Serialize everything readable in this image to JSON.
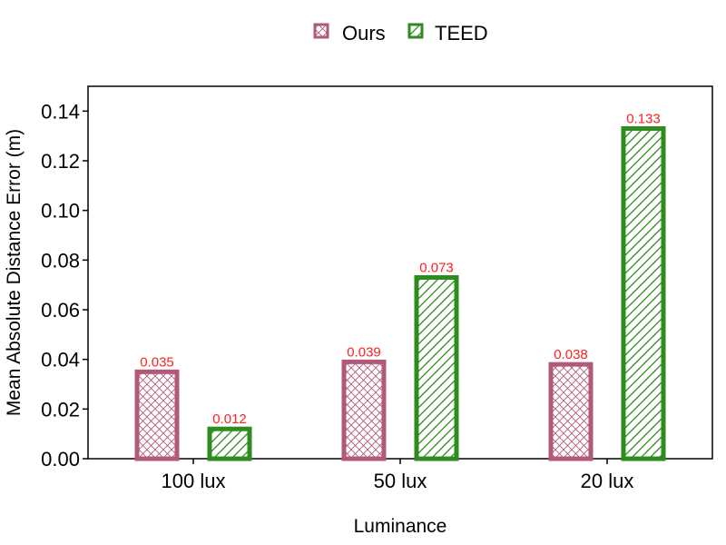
{
  "chart_data": {
    "type": "bar",
    "categories": [
      "100 lux",
      "50 lux",
      "20 lux"
    ],
    "series": [
      {
        "name": "Ours",
        "values": [
          0.035,
          0.039,
          0.038
        ],
        "labels": [
          "0.035",
          "0.039",
          "0.038"
        ],
        "color": "#b05a78",
        "pattern": "crosshatch"
      },
      {
        "name": "TEED",
        "values": [
          0.012,
          0.073,
          0.133
        ],
        "labels": [
          "0.012",
          "0.073",
          "0.133"
        ],
        "color": "#2e8b1e",
        "pattern": "diagonal"
      }
    ],
    "xlabel": "Luminance",
    "ylabel": "Mean Absolute Distance Error (m)",
    "ylim": [
      0,
      0.15
    ],
    "yticks": [
      0,
      0.02,
      0.04,
      0.06,
      0.08,
      0.1,
      0.12,
      0.14
    ],
    "ytick_labels": [
      "0.00",
      "0.02",
      "0.04",
      "0.06",
      "0.08",
      "0.10",
      "0.12",
      "0.14"
    ],
    "legend_position": "top-center",
    "data_label_color": "#ff2020",
    "grid": false
  }
}
